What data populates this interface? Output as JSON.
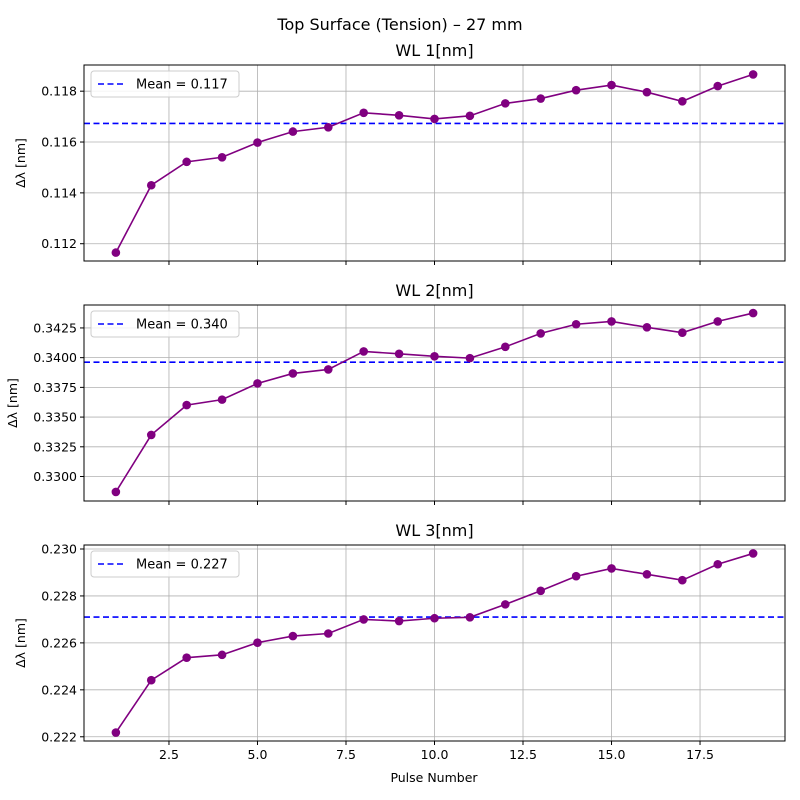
{
  "figure": {
    "title": "Top Surface (Tension) – 27 mm",
    "xlabel": "Pulse Number"
  },
  "colors": {
    "series": "#800080",
    "mean": "#0000ff",
    "grid": "#b0b0b0"
  },
  "chart_data": [
    {
      "type": "line",
      "title": "WL 1[nm]",
      "xlabel": "",
      "ylabel": "Δλ [nm]",
      "x": [
        1,
        2,
        3,
        4,
        5,
        6,
        7,
        8,
        9,
        10,
        11,
        12,
        13,
        14,
        15,
        16,
        17,
        18,
        19
      ],
      "series": [
        {
          "values": [
            0.11165,
            0.1143,
            0.11522,
            0.1154,
            0.11598,
            0.11641,
            0.11658,
            0.11715,
            0.11705,
            0.11691,
            0.11703,
            0.11752,
            0.11771,
            0.11804,
            0.11824,
            0.11796,
            0.1176,
            0.1182,
            0.11866
          ]
        }
      ],
      "mean": {
        "label": "Mean = 0.117",
        "value": 0.11673
      },
      "xlim": [
        0.1,
        19.9
      ],
      "ylim": [
        0.11132,
        0.11903
      ],
      "xticks": [
        2.5,
        5.0,
        7.5,
        10.0,
        12.5,
        15.0,
        17.5
      ],
      "yticks": [
        0.112,
        0.114,
        0.116,
        0.118
      ],
      "ytick_labels": [
        "0.112",
        "0.114",
        "0.116",
        "0.118"
      ],
      "grid": true,
      "legend": "upper left"
    },
    {
      "type": "line",
      "title": "WL 2[nm]",
      "xlabel": "",
      "ylabel": "Δλ [nm]",
      "x": [
        1,
        2,
        3,
        4,
        5,
        6,
        7,
        8,
        9,
        10,
        11,
        12,
        13,
        14,
        15,
        16,
        17,
        18,
        19
      ],
      "series": [
        {
          "values": [
            0.3287,
            0.3335,
            0.33601,
            0.33647,
            0.33783,
            0.33867,
            0.33901,
            0.34052,
            0.34032,
            0.34011,
            0.33996,
            0.34091,
            0.34204,
            0.34281,
            0.34305,
            0.34255,
            0.3421,
            0.34305,
            0.34375
          ]
        }
      ],
      "mean": {
        "label": "Mean = 0.340",
        "value": 0.33962
      },
      "xlim": [
        0.1,
        19.9
      ],
      "ylim": [
        0.32794,
        0.34443
      ],
      "xticks": [
        2.5,
        5.0,
        7.5,
        10.0,
        12.5,
        15.0,
        17.5
      ],
      "yticks": [
        0.33,
        0.3325,
        0.335,
        0.3375,
        0.34,
        0.3425
      ],
      "ytick_labels": [
        "0.3300",
        "0.3325",
        "0.3350",
        "0.3375",
        "0.3400",
        "0.3425"
      ],
      "grid": true,
      "legend": "upper left"
    },
    {
      "type": "line",
      "title": "WL 3[nm]",
      "xlabel": "Pulse Number",
      "ylabel": "Δλ [nm]",
      "x": [
        1,
        2,
        3,
        4,
        5,
        6,
        7,
        8,
        9,
        10,
        11,
        12,
        13,
        14,
        15,
        16,
        17,
        18,
        19
      ],
      "series": [
        {
          "values": [
            0.22218,
            0.22441,
            0.22537,
            0.22549,
            0.22601,
            0.22629,
            0.2264,
            0.227,
            0.22693,
            0.22705,
            0.22709,
            0.22764,
            0.22822,
            0.22884,
            0.22917,
            0.22892,
            0.22867,
            0.22935,
            0.22981
          ]
        }
      ],
      "mean": {
        "label": "Mean = 0.227",
        "value": 0.2271
      },
      "xlim": [
        0.1,
        19.9
      ],
      "ylim": [
        0.22182,
        0.23017
      ],
      "xticks": [
        2.5,
        5.0,
        7.5,
        10.0,
        12.5,
        15.0,
        17.5
      ],
      "xtick_labels": [
        "2.5",
        "5.0",
        "7.5",
        "10.0",
        "12.5",
        "15.0",
        "17.5"
      ],
      "yticks": [
        0.222,
        0.224,
        0.226,
        0.228,
        0.23
      ],
      "ytick_labels": [
        "0.222",
        "0.224",
        "0.226",
        "0.228",
        "0.230"
      ],
      "grid": true,
      "legend": "upper left"
    }
  ]
}
